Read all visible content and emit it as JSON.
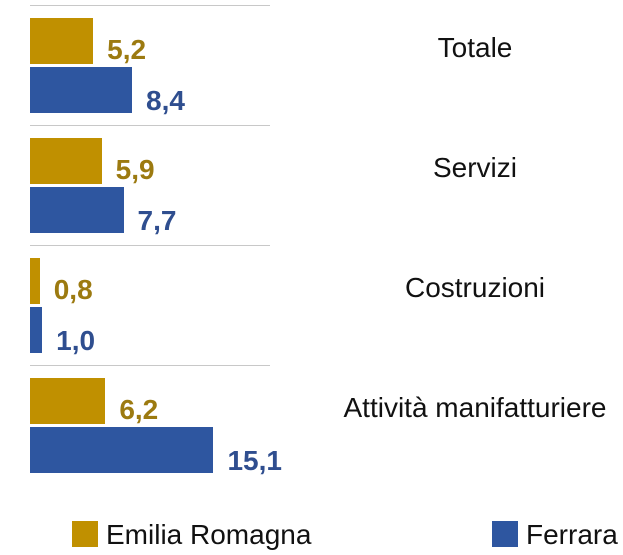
{
  "chart_data": {
    "type": "bar",
    "orientation": "horizontal",
    "categories": [
      "Totale",
      "Servizi",
      "Costruzioni",
      "Attività manifatturiere"
    ],
    "series": [
      {
        "name": "Emilia Romagna",
        "color": "#c09000",
        "label_color": "#9c7a10",
        "values": [
          5.2,
          5.9,
          0.8,
          6.2
        ],
        "value_labels": [
          "5,2",
          "5,9",
          "0,8",
          "6,2"
        ]
      },
      {
        "name": "Ferrara",
        "color": "#2e56a0",
        "label_color": "#2f4e8f",
        "values": [
          8.4,
          7.7,
          1.0,
          15.1
        ],
        "value_labels": [
          "8,4",
          "7,7",
          "1,0",
          "15,1"
        ]
      }
    ]
  }
}
